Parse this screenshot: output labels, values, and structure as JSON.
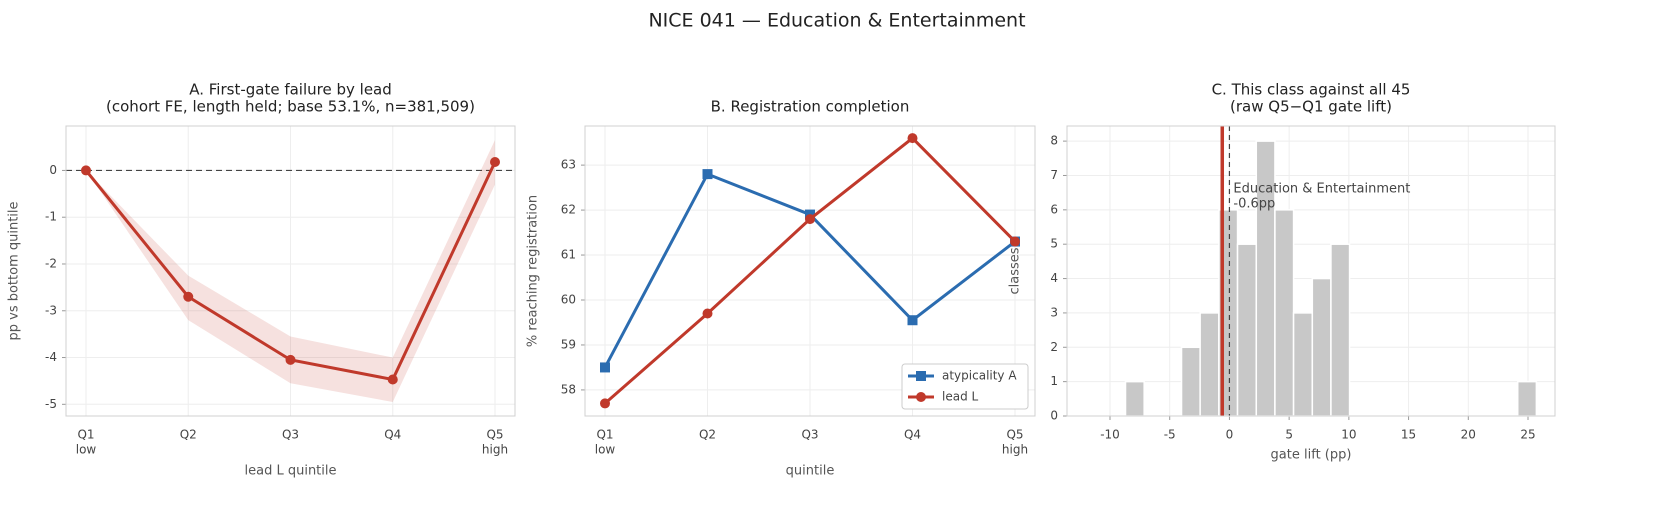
{
  "title": "NICE 041 — Education & Entertainment",
  "chart_data": [
    {
      "type": "line",
      "title": [
        "A. First-gate failure by lead",
        "(cohort FE, length held; base 53.1%, n=381,509)"
      ],
      "categories": [
        "Q1",
        "Q2",
        "Q3",
        "Q4",
        "Q5"
      ],
      "category_sublabels": [
        "low",
        null,
        null,
        null,
        "high"
      ],
      "xlabel": "lead L quintile",
      "ylabel": "pp vs bottom quintile",
      "series": [
        {
          "color": "#c0392b",
          "marker": "circle",
          "values": [
            0,
            -2.7,
            -4.05,
            -4.47,
            0.18
          ],
          "ci_lower": [
            0,
            -3.2,
            -4.55,
            -4.95,
            -0.3
          ],
          "ci_upper": [
            0,
            -2.25,
            -3.55,
            -4.0,
            0.65
          ]
        }
      ],
      "hline": 0,
      "ylim": [
        -5.25,
        0.95
      ],
      "yticks": [
        -5,
        -4,
        -3,
        -2,
        -1,
        0
      ],
      "grid": true
    },
    {
      "type": "line",
      "title": [
        "B. Registration completion"
      ],
      "categories": [
        "Q1",
        "Q2",
        "Q3",
        "Q4",
        "Q5"
      ],
      "category_sublabels": [
        "low",
        null,
        null,
        null,
        "high"
      ],
      "xlabel": "quintile",
      "ylabel": "% reaching registration",
      "series": [
        {
          "name": "atypicality A",
          "color": "#2b6cb0",
          "marker": "square",
          "values": [
            58.5,
            62.8,
            61.9,
            59.55,
            61.3
          ]
        },
        {
          "name": "lead L",
          "color": "#c0392b",
          "marker": "circle",
          "values": [
            57.7,
            59.7,
            61.8,
            63.6,
            61.3
          ]
        }
      ],
      "legend": "lower right",
      "ylim": [
        57.42,
        63.87
      ],
      "yticks": [
        58,
        59,
        60,
        61,
        62,
        63
      ],
      "grid": true
    },
    {
      "type": "histogram",
      "title": [
        "C. This class against all 45",
        "(raw Q5−Q1 gate lift)"
      ],
      "xlabel": "gate lift (pp)",
      "ylabel": "classes",
      "bins": [
        -8.7,
        -7.14,
        -5.57,
        -4.01,
        -2.45,
        -0.88,
        0.68,
        2.25,
        3.81,
        5.37,
        6.94,
        8.5,
        10.06,
        11.63,
        13.19,
        14.75,
        16.32,
        17.88,
        19.44,
        21.01,
        22.57,
        24.14,
        25.7
      ],
      "counts": [
        1,
        0,
        0,
        2,
        3,
        6,
        5,
        8,
        6,
        3,
        4,
        5,
        0,
        0,
        0,
        0,
        0,
        0,
        0,
        0,
        0,
        1
      ],
      "color": "#c8c8c8",
      "reference_line": 0,
      "highlight": {
        "label": "Education & Entertainment",
        "value": -0.6,
        "value_label": "-0.6pp",
        "color": "#c0392b"
      },
      "xlim": [
        -13.6,
        27.26
      ],
      "xticks": [
        -10,
        -5,
        0,
        5,
        10,
        15,
        20,
        25
      ],
      "ylim": [
        0,
        8.44
      ],
      "yticks": [
        0,
        1,
        2,
        3,
        4,
        5,
        6,
        7,
        8
      ],
      "grid": true
    }
  ]
}
